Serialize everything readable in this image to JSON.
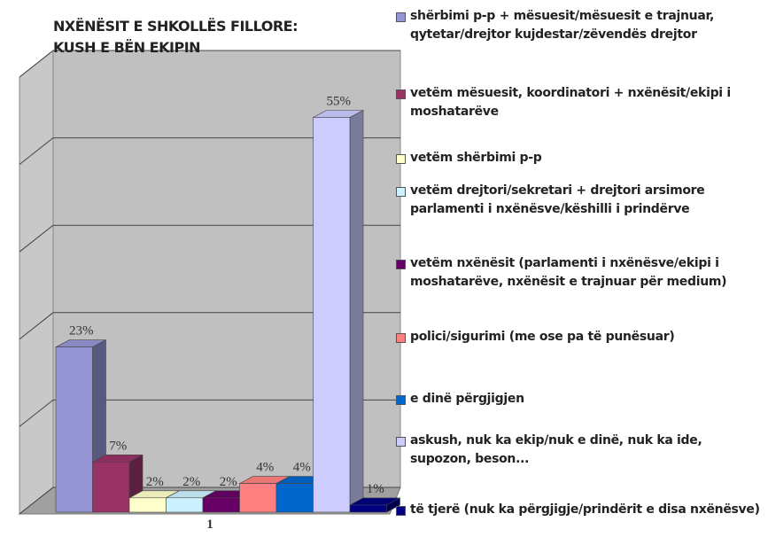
{
  "chart_data": {
    "type": "bar3d",
    "title": [
      "NXËNËSIT E SHKOLLËS FILLORE:",
      "KUSH E BËN EKIPIN"
    ],
    "categories": [
      "1"
    ],
    "ylim": [
      0,
      65
    ],
    "yticks": [
      0,
      13,
      26,
      39,
      52,
      65
    ],
    "grid": true,
    "series": [
      {
        "name": "shërbimi p-p + mësuesit/mësuesit e trajnuar, qytetar/drejtor kujdestar/zëvendës drejtor",
        "color": "#9595d5",
        "values": [
          23
        ],
        "value_labels": [
          "23%"
        ]
      },
      {
        "name": "vetëm mësuesit, koordinatori + nxënësit/ekipi i moshatarëve",
        "color": "#993366",
        "values": [
          7
        ],
        "value_labels": [
          "7%"
        ]
      },
      {
        "name": "vetëm shërbimi p-p",
        "color": "#ffffcc",
        "values": [
          2
        ],
        "value_labels": [
          "2%"
        ]
      },
      {
        "name": "vetëm drejtori/sekretari + drejtori arsimore parlamenti i nxënësve/këshilli i prindërve",
        "color": "#ccf2ff",
        "values": [
          2
        ],
        "value_labels": [
          "2%"
        ]
      },
      {
        "name": "vetëm nxënësit (parlamenti i nxënësve/ekipi i moshatarëve, nxënësit e trajnuar për medium)",
        "color": "#660066",
        "values": [
          2
        ],
        "value_labels": [
          "2%"
        ]
      },
      {
        "name": "polici/sigurimi (me ose pa të punësuar)",
        "color": "#ff8080",
        "values": [
          4
        ],
        "value_labels": [
          "4%"
        ]
      },
      {
        "name": "e dinë përgjigjen",
        "color": "#0066cc",
        "values": [
          4
        ],
        "value_labels": [
          "4%"
        ]
      },
      {
        "name": "askush, nuk ka ekip/nuk e dinë, nuk ka ide, supozon, beson...",
        "color": "#ccccff",
        "values": [
          55
        ],
        "value_labels": [
          "55%"
        ]
      },
      {
        "name": "të tjerë (nuk ka përgjigje/prindërit e disa nxënësve)",
        "color": "#000080",
        "values": [
          1
        ],
        "value_labels": [
          "1%"
        ]
      }
    ]
  }
}
